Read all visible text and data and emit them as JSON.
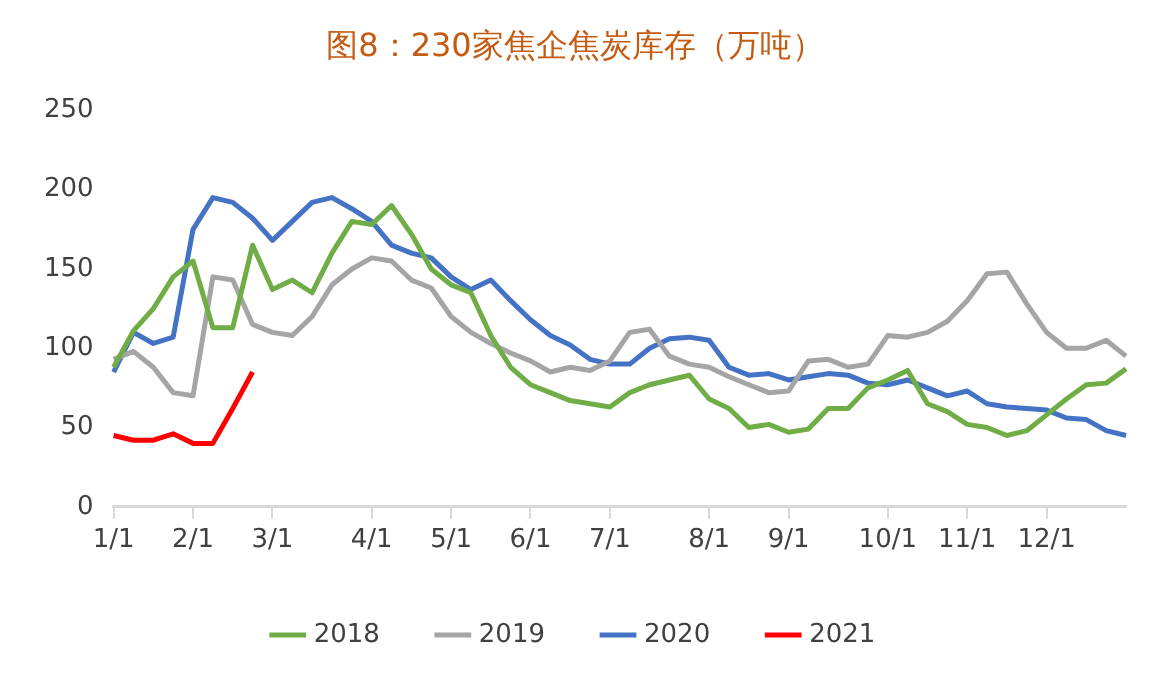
{
  "chart_data": {
    "type": "line",
    "title": "图8：230家焦企焦炭库存（万吨）",
    "categories": [
      "1/1",
      null,
      null,
      null,
      "2/1",
      null,
      null,
      null,
      "3/1",
      null,
      null,
      null,
      null,
      "4/1",
      null,
      null,
      null,
      "5/1",
      null,
      null,
      null,
      "6/1",
      null,
      null,
      null,
      "7/1",
      null,
      null,
      null,
      null,
      "8/1",
      null,
      null,
      null,
      "9/1",
      null,
      null,
      null,
      null,
      "10/1",
      null,
      null,
      null,
      "11/1",
      null,
      null,
      null,
      "12/1",
      null,
      null,
      null,
      null
    ],
    "series": [
      {
        "name": "2018",
        "color": "#70ad47",
        "values": [
          88,
          111,
          125,
          145,
          155,
          113,
          113,
          165,
          137,
          143,
          135,
          160,
          180,
          178,
          190,
          172,
          150,
          140,
          135,
          108,
          88,
          77,
          72,
          67,
          65,
          63,
          72,
          77,
          80,
          83,
          68,
          62,
          50,
          52,
          47,
          49,
          62,
          62,
          75,
          80,
          86,
          65,
          60,
          52,
          50,
          45,
          48,
          58,
          68,
          77,
          78,
          87
        ]
      },
      {
        "name": "2019",
        "color": "#a5a5a5",
        "values": [
          93,
          98,
          88,
          72,
          70,
          145,
          143,
          115,
          110,
          108,
          120,
          140,
          150,
          157,
          155,
          143,
          138,
          120,
          110,
          103,
          97,
          92,
          85,
          88,
          86,
          92,
          110,
          112,
          95,
          90,
          88,
          82,
          77,
          72,
          73,
          92,
          93,
          88,
          90,
          108,
          107,
          110,
          117,
          130,
          147,
          148,
          128,
          110,
          100,
          100,
          105,
          95
        ]
      },
      {
        "name": "2020",
        "color": "#4472c4",
        "values": [
          85,
          110,
          103,
          107,
          175,
          195,
          192,
          182,
          168,
          180,
          192,
          195,
          188,
          180,
          165,
          160,
          157,
          145,
          137,
          143,
          130,
          118,
          108,
          102,
          93,
          90,
          90,
          100,
          106,
          107,
          105,
          88,
          83,
          84,
          80,
          82,
          84,
          83,
          78,
          77,
          80,
          75,
          70,
          73,
          65,
          63,
          62,
          61,
          56,
          55,
          48,
          45
        ]
      },
      {
        "name": "2021",
        "color": "#ff0000",
        "values": [
          45,
          42,
          42,
          46,
          40,
          40,
          62,
          85,
          null,
          null,
          null,
          null,
          null,
          null,
          null,
          null,
          null,
          null,
          null,
          null,
          null,
          null,
          null,
          null,
          null,
          null,
          null,
          null,
          null,
          null,
          null,
          null,
          null,
          null,
          null,
          null,
          null,
          null,
          null,
          null,
          null,
          null,
          null,
          null,
          null,
          null,
          null,
          null,
          null,
          null,
          null,
          null
        ]
      }
    ],
    "ylim": [
      0,
      250
    ],
    "yticks": [
      0,
      50,
      100,
      150,
      200,
      250
    ],
    "grid": false,
    "legend": "bottom",
    "marker": "none",
    "line_style": "solid"
  }
}
